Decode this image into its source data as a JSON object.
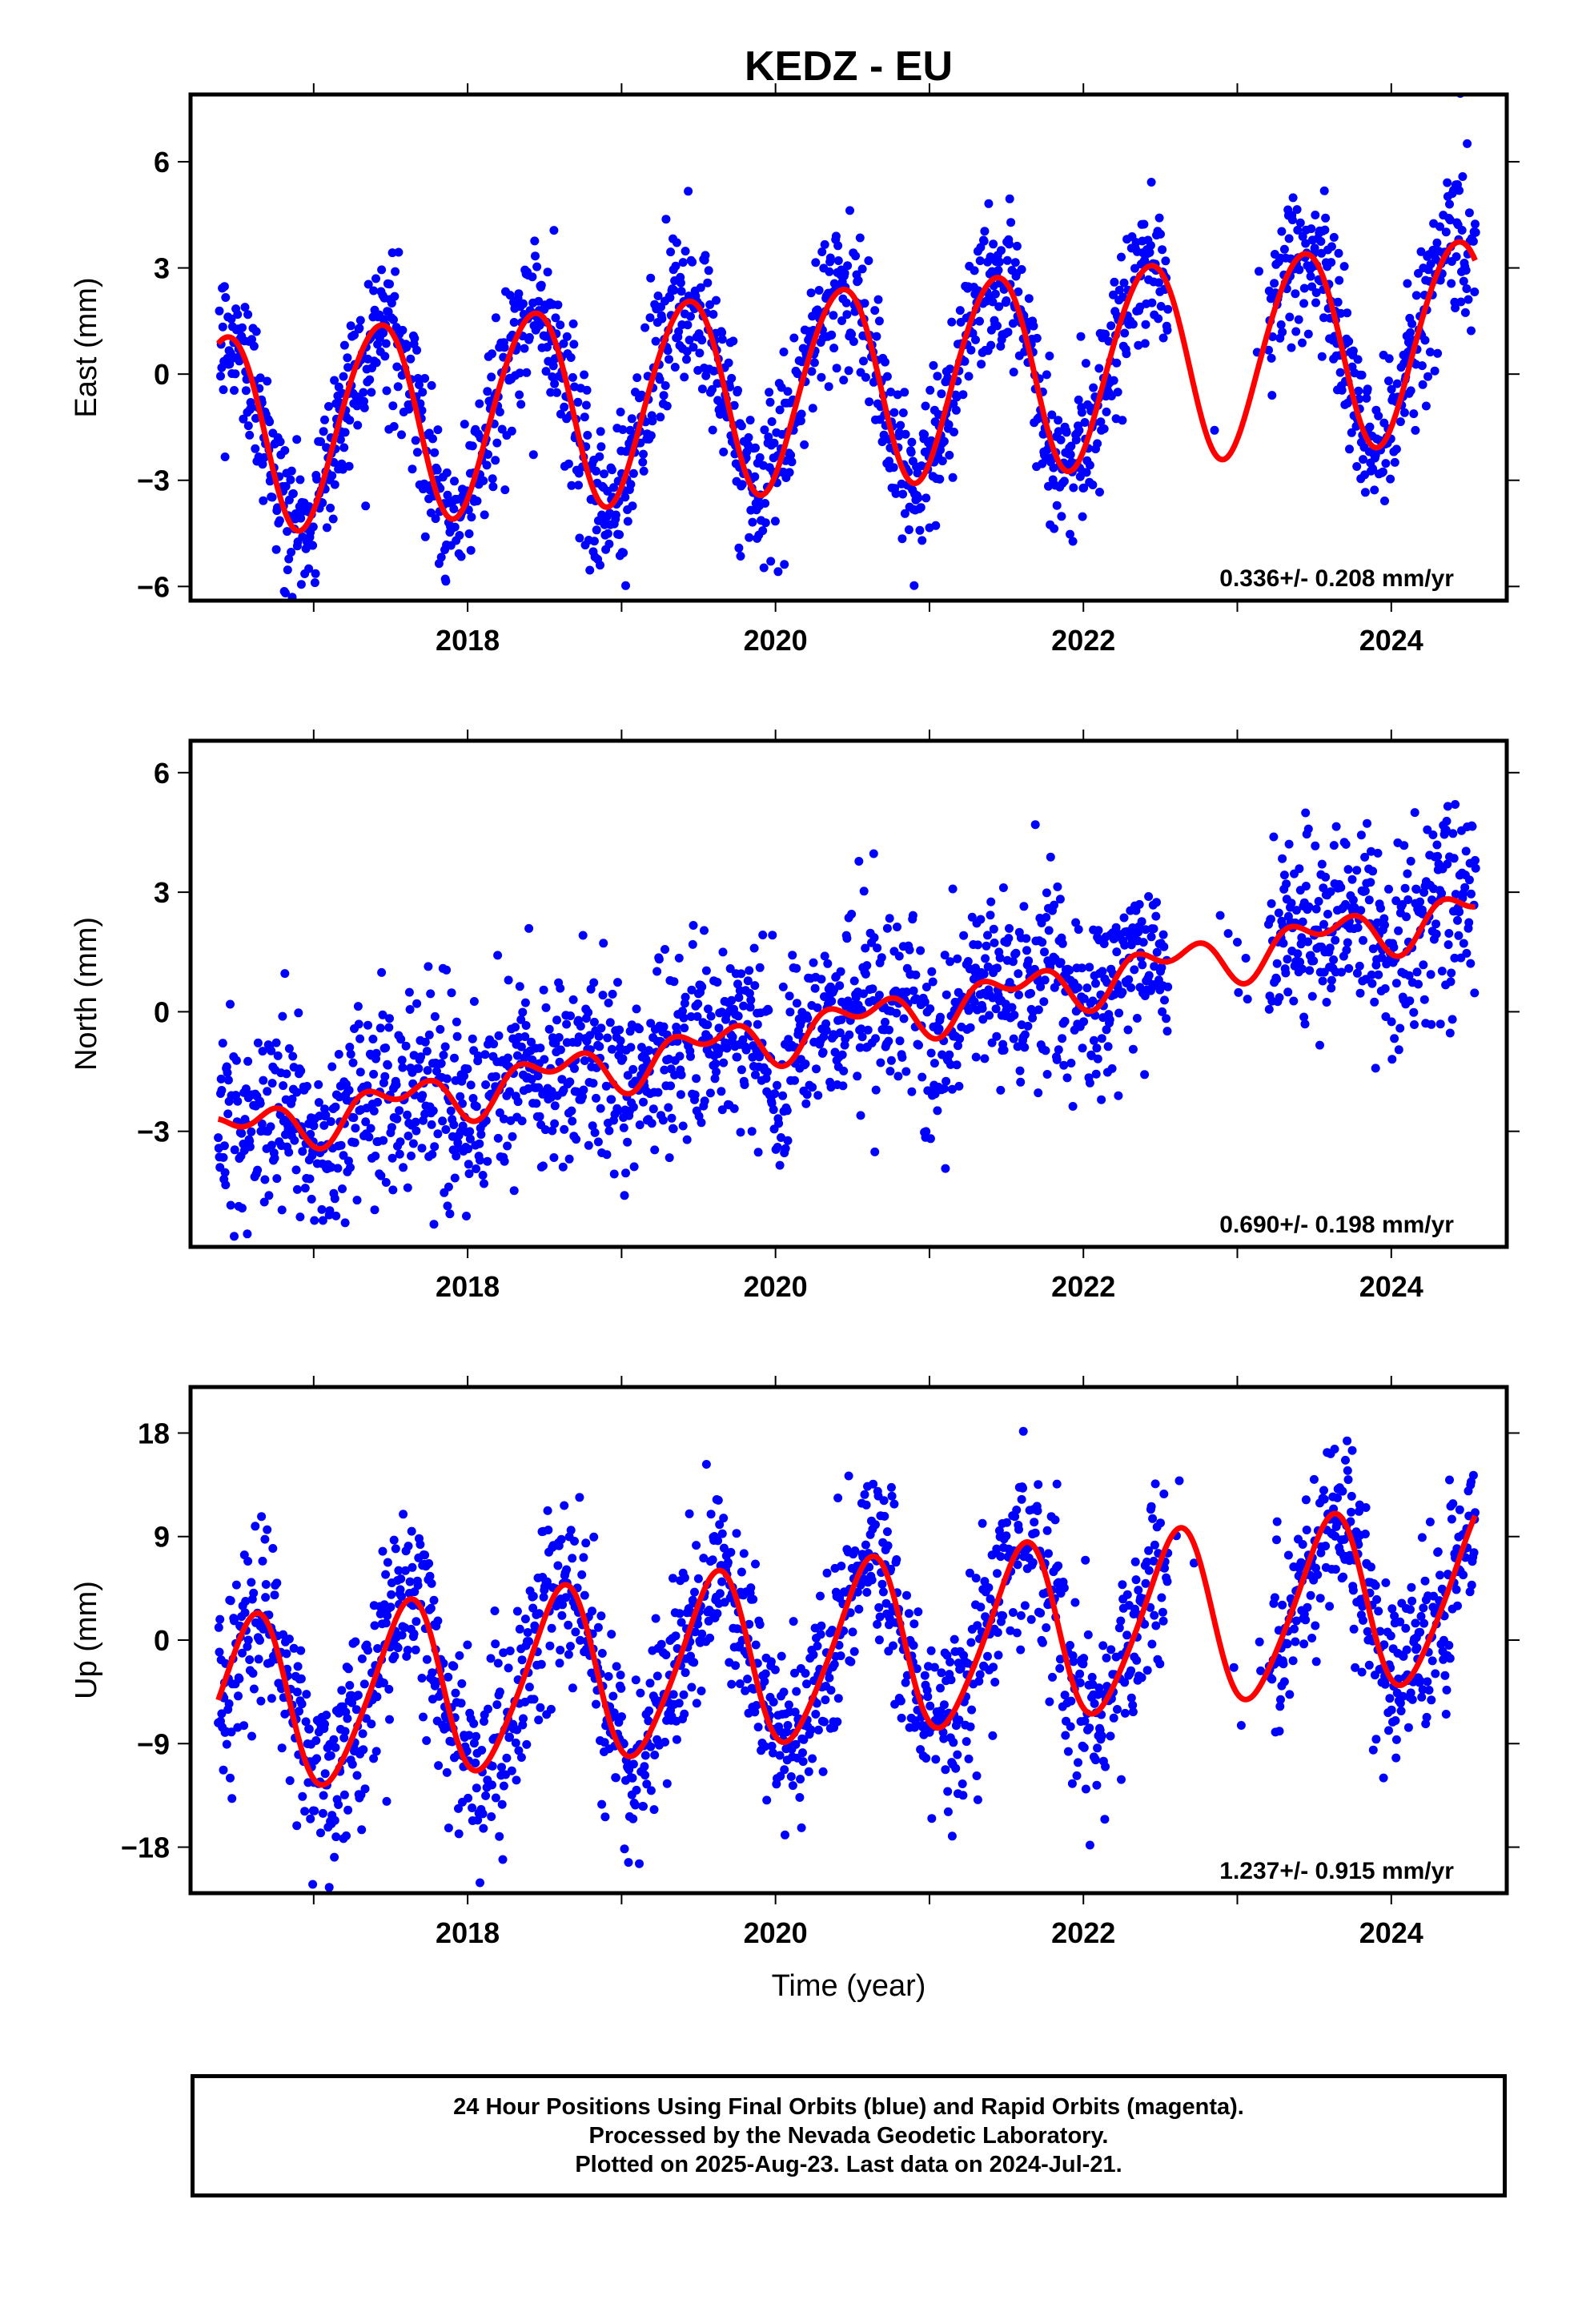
{
  "title": "KEDZ - EU",
  "xlabel": "Time (year)",
  "footer": [
    "24 Hour Positions Using Final Orbits (blue) and Rapid Orbits (magenta).",
    "Processed by the Nevada Geodetic Laboratory.",
    "Plotted on 2025-Aug-23. Last data on 2024-Jul-21."
  ],
  "colors": {
    "points": "#0000ff",
    "fit": "#ff0000"
  },
  "chart_data": [
    {
      "type": "scatter",
      "ylabel": "East (mm)",
      "xlim": [
        2016.2,
        2024.75
      ],
      "ylim": [
        -6.4,
        7.9
      ],
      "xticks": [
        2018,
        2020,
        2022,
        2024
      ],
      "yticks": [
        -6,
        -3,
        0,
        3,
        6
      ],
      "ytick_labels": [
        "−6",
        "−3",
        "0",
        "3",
        "6"
      ],
      "rate": "0.336+/- 0.208 mm/yr",
      "grid": false,
      "model": {
        "offset": -0.45,
        "trend": 0.336,
        "annual_amp": 2.8,
        "annual_peak_phase": 0.42,
        "semi_amp": 0.2,
        "semi_phase": 0.1,
        "noise": 1.1
      },
      "gaps": [
        [
          2022.55,
          2023.2
        ]
      ]
    },
    {
      "type": "scatter",
      "ylabel": "North (mm)",
      "xlim": [
        2016.2,
        2024.75
      ],
      "ylim": [
        -5.9,
        6.8
      ],
      "xticks": [
        2018,
        2020,
        2022,
        2024
      ],
      "yticks": [
        -3,
        0,
        3,
        6
      ],
      "ytick_labels": [
        "−3",
        "0",
        "3",
        "6"
      ],
      "rate": "0.690+/- 0.198 mm/yr",
      "grid": false,
      "model": {
        "offset": -0.6,
        "trend": 0.69,
        "annual_amp": 0.45,
        "annual_peak_phase": 0.55,
        "semi_amp": 0.35,
        "semi_phase": 0.3,
        "noise": 1.2
      },
      "gaps": [
        [
          2022.55,
          2023.2
        ]
      ]
    },
    {
      "type": "scatter",
      "ylabel": "Up (mm)",
      "xlim": [
        2016.2,
        2024.75
      ],
      "ylim": [
        -22,
        22
      ],
      "xticks": [
        2018,
        2020,
        2022,
        2024
      ],
      "yticks": [
        -18,
        -9,
        0,
        9,
        18
      ],
      "ytick_labels": [
        "−18",
        "−9",
        "0",
        "9",
        "18"
      ],
      "rate": "1.237+/- 0.915 mm/yr",
      "grid": false,
      "model": {
        "offset": -1.5,
        "trend": 1.237,
        "annual_amp": 7.5,
        "annual_peak_phase": 0.6,
        "semi_amp": 1.0,
        "semi_phase": 0.2,
        "noise": 4.0
      },
      "gaps": [
        [
          2022.55,
          2023.2
        ]
      ]
    }
  ]
}
